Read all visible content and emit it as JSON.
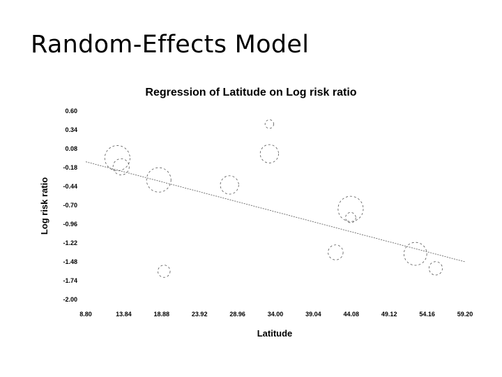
{
  "slide": {
    "title": "Random-Effects Model"
  },
  "chart_data": {
    "type": "scatter",
    "title": "Regression of Latitude on Log risk ratio",
    "xlabel": "Latitude",
    "ylabel": "Log risk ratio",
    "xlim": [
      8.8,
      59.2
    ],
    "ylim": [
      -2.0,
      0.6
    ],
    "x_ticks": [
      "8.80",
      "13.84",
      "18.88",
      "23.92",
      "28.96",
      "34.00",
      "39.04",
      "44.08",
      "49.12",
      "54.16",
      "59.20"
    ],
    "y_ticks": [
      "0.60",
      "0.34",
      "0.08",
      "-0.18",
      "-0.44",
      "-0.70",
      "-0.96",
      "-1.22",
      "-1.48",
      "-1.74",
      "-2.00"
    ],
    "points": [
      {
        "x": 13,
        "y": -0.05,
        "weight": 8.5
      },
      {
        "x": 13.5,
        "y": -0.17,
        "weight": 3.5
      },
      {
        "x": 18.5,
        "y": -0.35,
        "weight": 8.0
      },
      {
        "x": 19.2,
        "y": -1.61,
        "weight": 2.0
      },
      {
        "x": 27.9,
        "y": -0.42,
        "weight": 4.5
      },
      {
        "x": 33.2,
        "y": 0.42,
        "weight": 1.0
      },
      {
        "x": 33.2,
        "y": 0.01,
        "weight": 4.5
      },
      {
        "x": 42.0,
        "y": -1.35,
        "weight": 3.0
      },
      {
        "x": 44.0,
        "y": -0.75,
        "weight": 8.5
      },
      {
        "x": 44.0,
        "y": -0.87,
        "weight": 1.4
      },
      {
        "x": 52.6,
        "y": -1.37,
        "weight": 7.0
      },
      {
        "x": 55.3,
        "y": -1.57,
        "weight": 2.4
      }
    ],
    "regression_line": {
      "x": [
        8.8,
        59.2
      ],
      "y": [
        -0.1,
        -1.48
      ]
    }
  }
}
